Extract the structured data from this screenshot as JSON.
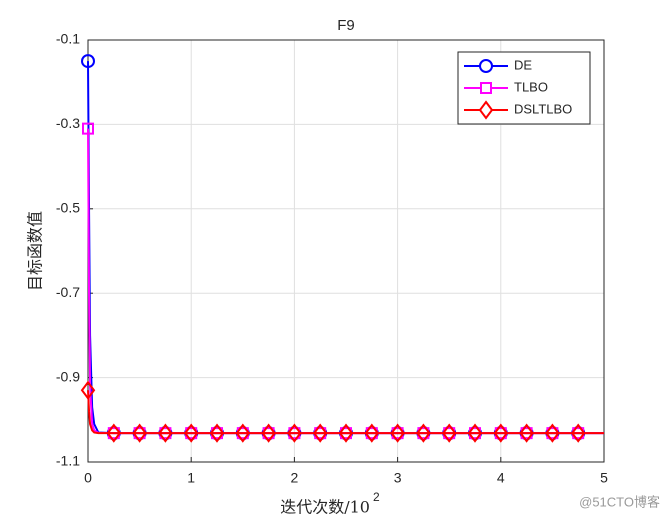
{
  "chart_data": {
    "type": "line",
    "title": "F9",
    "x_label": "迭代次数/10",
    "x_label_exponent": "2",
    "y_label": "目标函数值",
    "x": [
      0,
      0.01,
      0.02,
      0.04,
      0.06,
      0.1,
      0.25,
      0.5,
      0.75,
      1,
      1.25,
      1.5,
      1.75,
      2,
      2.25,
      2.5,
      2.75,
      3,
      3.25,
      3.5,
      3.75,
      4,
      4.25,
      4.5,
      4.75,
      5
    ],
    "series": [
      {
        "name": "DE",
        "color": "#0000ff",
        "marker": "circle",
        "values": [
          -0.15,
          -0.5,
          -0.8,
          -0.97,
          -1.01,
          -1.03,
          -1.0316,
          -1.0316,
          -1.0316,
          -1.0316,
          -1.0316,
          -1.0316,
          -1.0316,
          -1.0316,
          -1.0316,
          -1.0316,
          -1.0316,
          -1.0316,
          -1.0316,
          -1.0316,
          -1.0316,
          -1.0316,
          -1.0316,
          -1.0316,
          -1.0316,
          -1.0316
        ]
      },
      {
        "name": "TLBO",
        "color": "#ff00ff",
        "marker": "square",
        "values": [
          -0.31,
          -0.7,
          -0.92,
          -1.01,
          -1.025,
          -1.031,
          -1.0316,
          -1.0316,
          -1.0316,
          -1.0316,
          -1.0316,
          -1.0316,
          -1.0316,
          -1.0316,
          -1.0316,
          -1.0316,
          -1.0316,
          -1.0316,
          -1.0316,
          -1.0316,
          -1.0316,
          -1.0316,
          -1.0316,
          -1.0316,
          -1.0316,
          -1.0316
        ]
      },
      {
        "name": "DSLTLBO",
        "color": "#ff0000",
        "marker": "diamond",
        "values": [
          -0.93,
          -0.98,
          -1.01,
          -1.025,
          -1.03,
          -1.0316,
          -1.0316,
          -1.0316,
          -1.0316,
          -1.0316,
          -1.0316,
          -1.0316,
          -1.0316,
          -1.0316,
          -1.0316,
          -1.0316,
          -1.0316,
          -1.0316,
          -1.0316,
          -1.0316,
          -1.0316,
          -1.0316,
          -1.0316,
          -1.0316,
          -1.0316,
          -1.0316
        ]
      }
    ],
    "xlim": [
      0,
      5
    ],
    "xticks": [
      0,
      1,
      2,
      3,
      4,
      5
    ],
    "ylim": [
      -1.1,
      -0.1
    ],
    "yticks": [
      -1.1,
      -0.9,
      -0.7,
      -0.5,
      -0.3,
      -0.1
    ],
    "grid": true,
    "legend_position": "top-right",
    "watermark": "@51CTO博客"
  }
}
